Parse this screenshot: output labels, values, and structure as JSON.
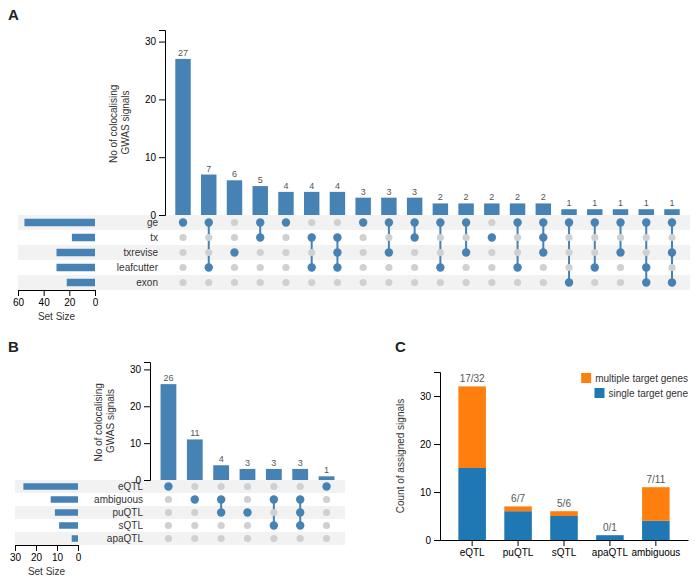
{
  "chart_data": [
    {
      "type": "upset",
      "title": "A",
      "ylabel": "No of colocalising\nGWAS signals",
      "values": [
        27,
        7,
        6,
        5,
        4,
        4,
        4,
        3,
        3,
        3,
        2,
        2,
        2,
        2,
        2,
        1,
        1,
        1,
        1,
        1
      ],
      "data_labels": true,
      "grid": false,
      "ylim": [
        0,
        32
      ],
      "yticks": [
        0,
        10,
        20,
        30
      ],
      "intersections": [
        [
          4
        ],
        [
          1,
          4
        ],
        [
          2
        ],
        [
          3,
          4
        ],
        [
          4
        ],
        [
          1,
          3
        ],
        [
          1,
          2,
          3
        ],
        [
          4
        ],
        [
          2,
          4
        ],
        [
          3,
          4
        ],
        [
          1,
          4
        ],
        [
          2,
          4
        ],
        [
          3
        ],
        [
          1,
          4
        ],
        [
          2,
          3,
          4
        ],
        [
          0,
          4
        ],
        [
          1,
          4
        ],
        [
          2,
          4
        ],
        [
          0,
          1,
          4
        ],
        [
          0,
          2,
          4
        ]
      ],
      "sets": {
        "orientation": "horizontal",
        "categories": [
          "exon",
          "leafcutter",
          "txrevise",
          "tx",
          "ge"
        ],
        "values": [
          22,
          30,
          30,
          18,
          55
        ],
        "xlabel": "Set Size",
        "xlim": [
          60,
          0
        ],
        "xticks": [
          60,
          40,
          20,
          0
        ]
      }
    },
    {
      "type": "upset",
      "title": "B",
      "ylabel": "No of colocalising\nGWAS signals",
      "values": [
        26,
        11,
        4,
        3,
        3,
        3,
        1
      ],
      "data_labels": true,
      "grid": false,
      "ylim": [
        0,
        32
      ],
      "yticks": [
        0,
        10,
        20,
        30
      ],
      "intersections": [
        [
          4
        ],
        [
          3
        ],
        [
          2,
          3
        ],
        [
          2
        ],
        [
          1,
          3
        ],
        [
          1,
          2,
          3
        ],
        [
          4
        ]
      ],
      "sets": {
        "orientation": "horizontal",
        "categories": [
          "apaQTL",
          "sQTL",
          "puQTL",
          "ambiguous",
          "eQTL"
        ],
        "values": [
          3,
          9,
          11,
          13,
          26
        ],
        "xlabel": "Set Size",
        "xlim": [
          30,
          0
        ],
        "xticks": [
          30,
          20,
          10,
          0
        ]
      }
    },
    {
      "type": "bar",
      "stacked": true,
      "title": "C",
      "ylabel": "Count of assigned signals",
      "categories": [
        "eQTL",
        "puQTL",
        "sQTL",
        "apaQTL",
        "ambiguous"
      ],
      "series": [
        {
          "name": "single target gene",
          "values": [
            15,
            6,
            5,
            1,
            4
          ]
        },
        {
          "name": "multiple target genes",
          "values": [
            17,
            1,
            1,
            0,
            7
          ]
        }
      ],
      "annotations": [
        "17/32",
        "6/7",
        "5/6",
        "0/1",
        "7/11"
      ],
      "ylim": [
        0,
        35
      ],
      "yticks": [
        0,
        10,
        20,
        30
      ],
      "legend": "upper right",
      "grid": false
    }
  ]
}
